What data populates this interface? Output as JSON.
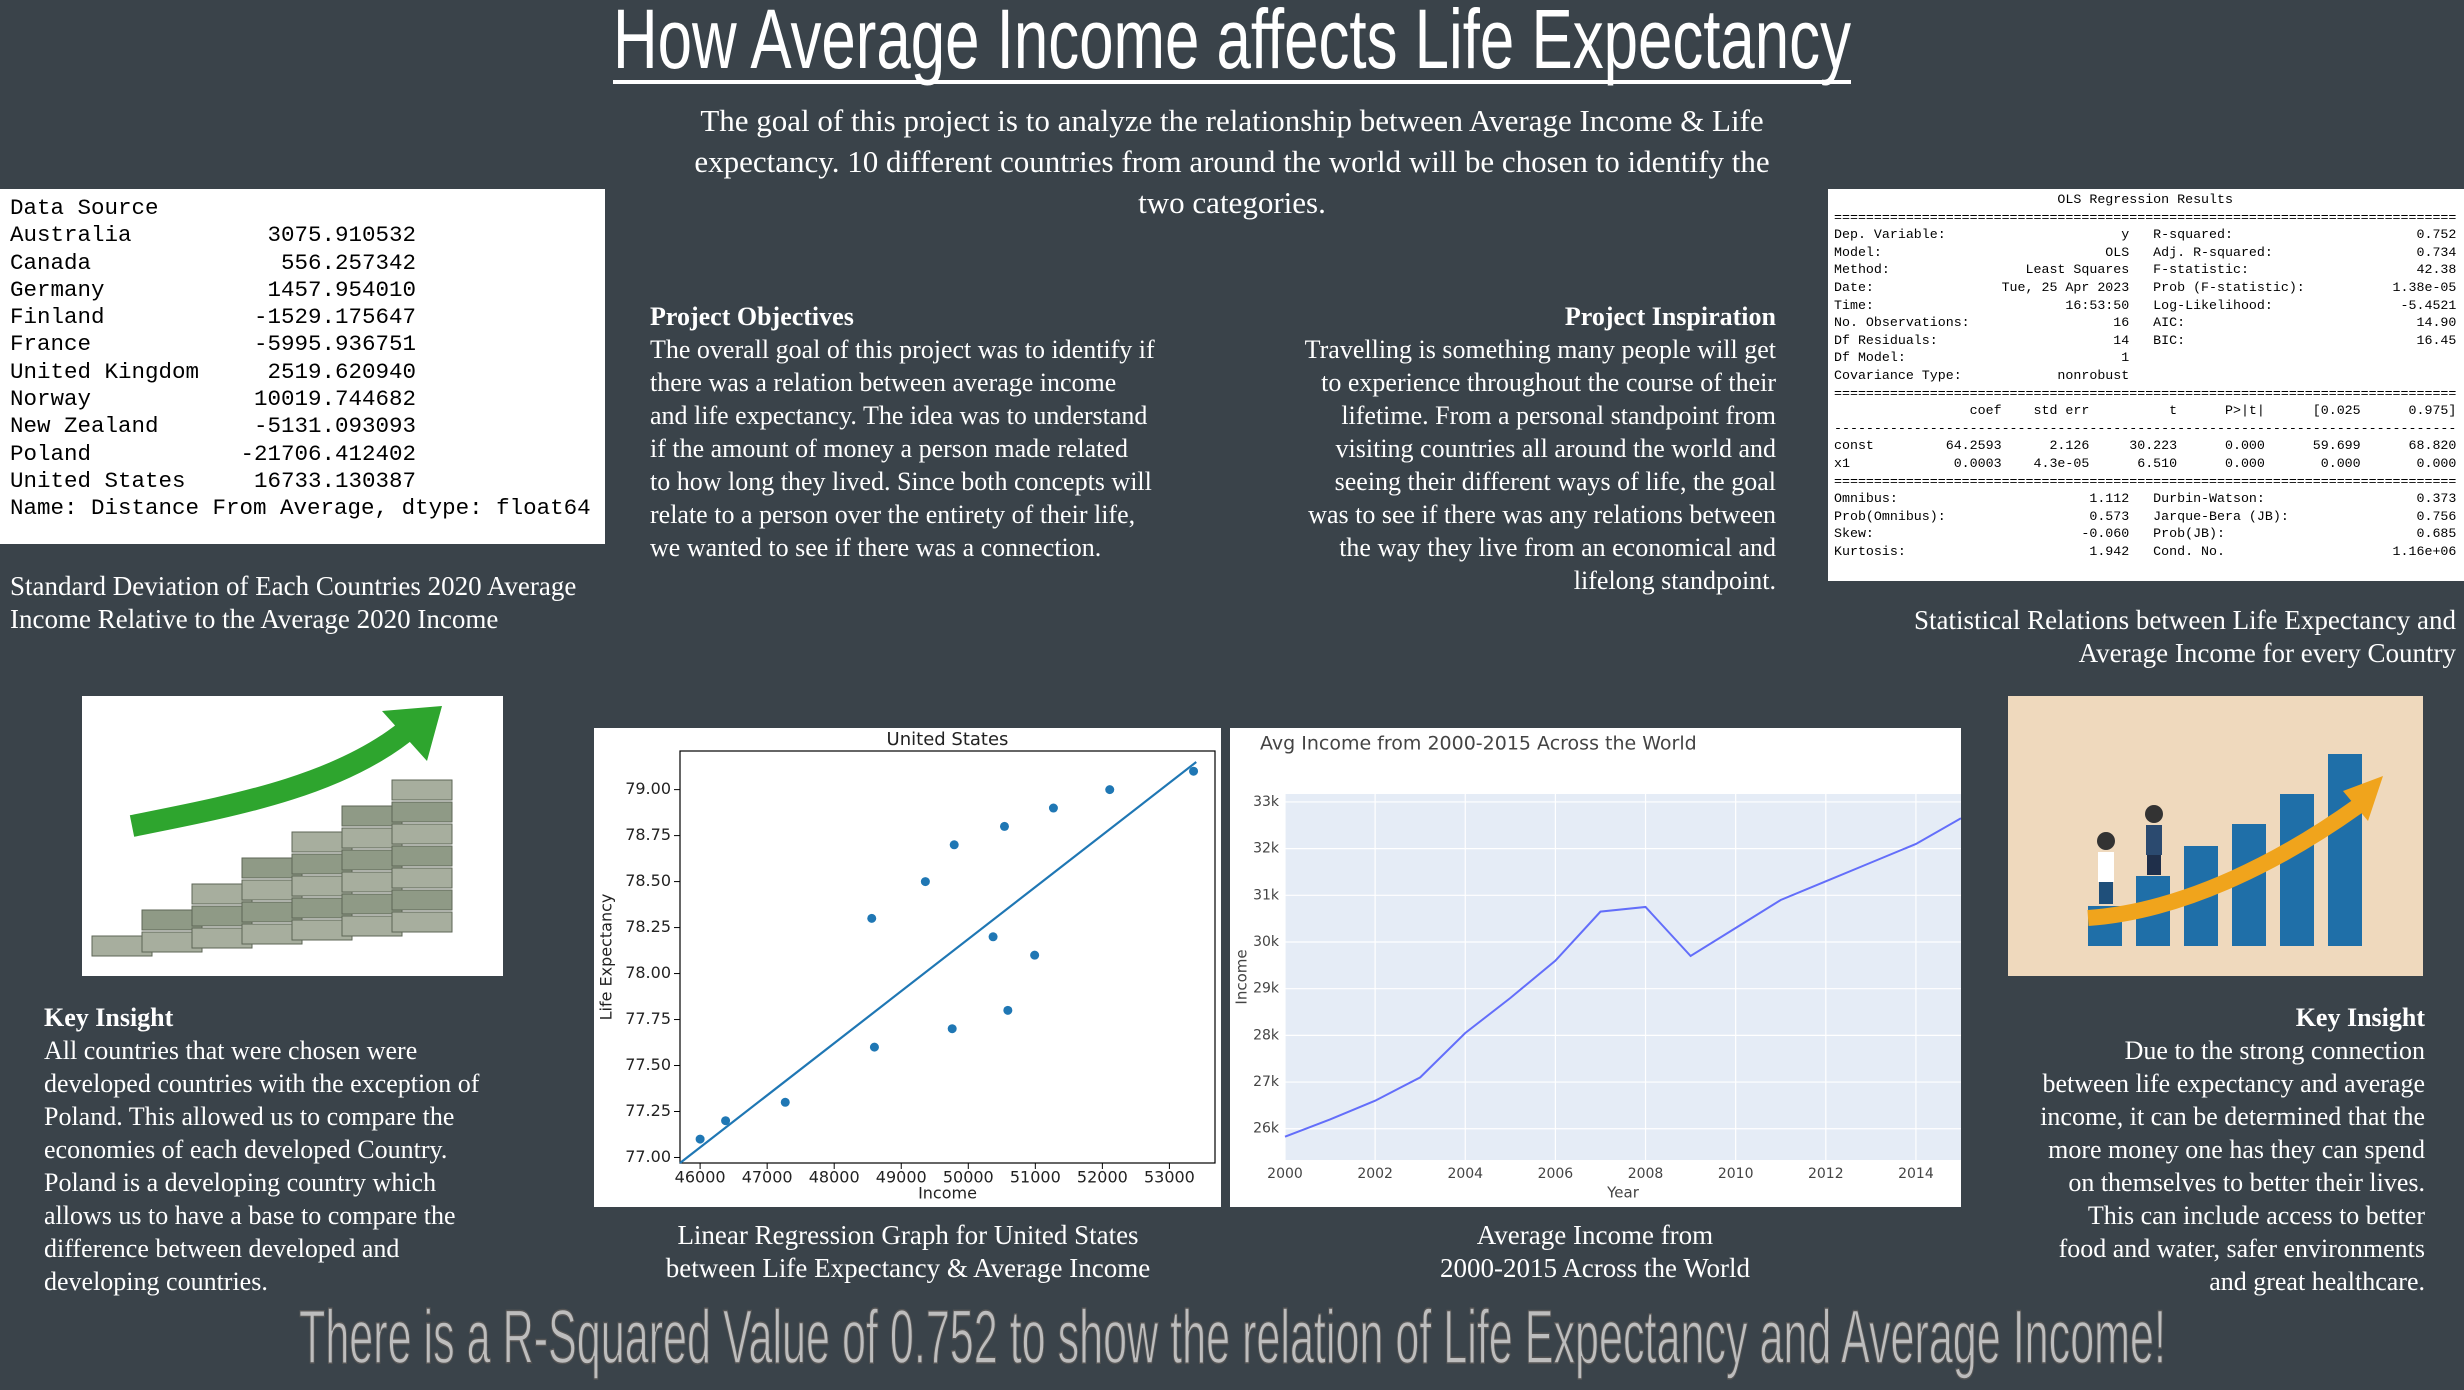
{
  "title": "How Average Income affects Life Expectancy",
  "intro": [
    "The goal of this project is to analyze the relationship between Average Income & Life",
    "expectancy. 10 different countries from around the world will be chosen to identify the",
    "two categories."
  ],
  "data_table": {
    "header": "Data Source",
    "rows": [
      [
        "Australia",
        "3075.910532"
      ],
      [
        "Canada",
        "556.257342"
      ],
      [
        "Germany",
        "1457.954010"
      ],
      [
        "Finland",
        "-1529.175647"
      ],
      [
        "France",
        "-5995.936751"
      ],
      [
        "United Kingdom",
        "2519.620940"
      ],
      [
        "Norway",
        "10019.744682"
      ],
      [
        "New Zealand",
        "-5131.093093"
      ],
      [
        "Poland",
        "-21706.412402"
      ],
      [
        "United States",
        "16733.130387"
      ]
    ],
    "footer": "Name: Distance From Average, dtype: float64",
    "caption": [
      "Standard Deviation of Each Countries 2020 Average",
      "Income Relative to the Average 2020 Income"
    ]
  },
  "objectives": {
    "heading": "Project Objectives",
    "lines": [
      "The overall goal of this project was to identify if",
      "there was a relation between average income",
      "and life expectancy. The idea was to understand",
      "if the amount of money a person made related",
      "to how long they lived. Since both concepts will",
      "relate to a person over the entirety of their life,",
      "we wanted to see if there was a connection."
    ]
  },
  "inspiration": {
    "heading": "Project Inspiration",
    "lines": [
      "Travelling is something many people will get",
      "to experience throughout the course of their",
      "lifetime. From a personal standpoint from",
      "visiting countries all around the world and",
      "seeing their different ways of life, the goal",
      "was to see if there was any relations between",
      "the way they live from an economical and",
      "lifelong standpoint."
    ]
  },
  "ols": {
    "lines": [
      "                            OLS Regression Results                            ",
      "==============================================================================",
      "Dep. Variable:                      y   R-squared:                       0.752",
      "Model:                            OLS   Adj. R-squared:                  0.734",
      "Method:                 Least Squares   F-statistic:                     42.38",
      "Date:                Tue, 25 Apr 2023   Prob (F-statistic):           1.38e-05",
      "Time:                        16:53:50   Log-Likelihood:                -5.4521",
      "No. Observations:                  16   AIC:                             14.90",
      "Df Residuals:                      14   BIC:                             16.45",
      "Df Model:                           1                                         ",
      "Covariance Type:            nonrobust                                         ",
      "==============================================================================",
      "                 coef    std err          t      P>|t|      [0.025      0.975]",
      "------------------------------------------------------------------------------",
      "const         64.2593      2.126     30.223      0.000      59.699      68.820",
      "x1             0.0003    4.3e-05      6.510      0.000       0.000       0.000",
      "==============================================================================",
      "Omnibus:                        1.112   Durbin-Watson:                   0.373",
      "Prob(Omnibus):                  0.573   Jarque-Bera (JB):                0.756",
      "Skew:                          -0.060   Prob(JB):                        0.685",
      "Kurtosis:                       1.942   Cond. No.                     1.16e+06"
    ],
    "caption": [
      "Statistical Relations between Life Expectancy and",
      "Average Income for every Country"
    ]
  },
  "chart_data": [
    {
      "type": "scatter",
      "title": "United States",
      "x_label": "Income",
      "y_label": "Life Expectancy",
      "x": [
        46000,
        46380,
        47270,
        48600,
        48560,
        49360,
        49760,
        49790,
        50370,
        50540,
        50590,
        50990,
        51270,
        52110,
        53360
      ],
      "values": [
        77.1,
        77.2,
        77.3,
        77.6,
        78.3,
        78.5,
        77.7,
        78.7,
        78.2,
        78.8,
        77.8,
        78.1,
        78.9,
        79.0,
        79.1
      ],
      "color": "#1f77b4",
      "fit_line": {
        "x": [
          45700,
          53400
        ],
        "values": [
          76.97,
          79.15
        ]
      },
      "xlim": [
        45700,
        53680
      ],
      "ylim": [
        76.97,
        79.21
      ],
      "xticks": [
        46000,
        47000,
        48000,
        49000,
        50000,
        51000,
        52000,
        53000
      ],
      "yticks": [
        {
          "value": 77,
          "label": "77.00"
        },
        77.25,
        {
          "value": 77.5,
          "label": "77.50"
        },
        77.75,
        {
          "value": 78,
          "label": "78.00"
        },
        78.25,
        {
          "value": 78.5,
          "label": "78.50"
        },
        78.75,
        {
          "value": 79,
          "label": "79.00"
        }
      ],
      "caption": [
        "Linear Regression Graph for United States",
        "between Life Expectancy & Average Income"
      ]
    },
    {
      "type": "line",
      "title": "Avg Income from 2000-2015 Across the World",
      "x_label": "Year",
      "y_label": "Income",
      "x": [
        2000,
        2001,
        2002,
        2003,
        2004,
        2005,
        2006,
        2007,
        2008,
        2009,
        2010,
        2011,
        2012,
        2013,
        2014,
        2015
      ],
      "values": [
        25830,
        26200,
        26600,
        27100,
        28050,
        28800,
        29600,
        30650,
        30750,
        29700,
        30300,
        30900,
        31300,
        31700,
        32100,
        32650
      ],
      "color": "#636efa",
      "background": "#e5ecf6",
      "grid": true,
      "xlim": [
        2000,
        2015
      ],
      "ylim": [
        25330,
        33170
      ],
      "xticks": [
        2000,
        2002,
        2004,
        2006,
        2008,
        2010,
        2012,
        2014
      ],
      "yticks": [
        {
          "value": 26000,
          "label": "26k"
        },
        {
          "value": 27000,
          "label": "27k"
        },
        {
          "value": 28000,
          "label": "28k"
        },
        {
          "value": 29000,
          "label": "29k"
        },
        {
          "value": 30000,
          "label": "30k"
        },
        {
          "value": 31000,
          "label": "31k"
        },
        {
          "value": 32000,
          "label": "32k"
        },
        {
          "value": 33000,
          "label": "33k"
        }
      ],
      "caption": [
        "Average Income from",
        "2000-2015 Across the World"
      ]
    }
  ],
  "key_insight_left": {
    "heading": "Key Insight",
    "lines": [
      "All countries that were chosen were",
      "developed countries with the exception of",
      "Poland. This allowed us to compare the",
      "economies of each developed Country.",
      "Poland is a developing country which",
      "allows us to have a base to compare the",
      "difference between developed and",
      "developing countries."
    ]
  },
  "key_insight_right": {
    "heading": "Key Insight",
    "lines": [
      "Due to the  strong connection",
      "between life expectancy and average",
      "income, it can be determined that the",
      "more money one has they can spend",
      "on themselves to better their lives.",
      "This can include access to better",
      "food and water, safer environments",
      "and great healthcare."
    ]
  },
  "conclusion": "There is a R-Squared Value of 0.752 to show the relation of Life Expectancy and Average Income!"
}
